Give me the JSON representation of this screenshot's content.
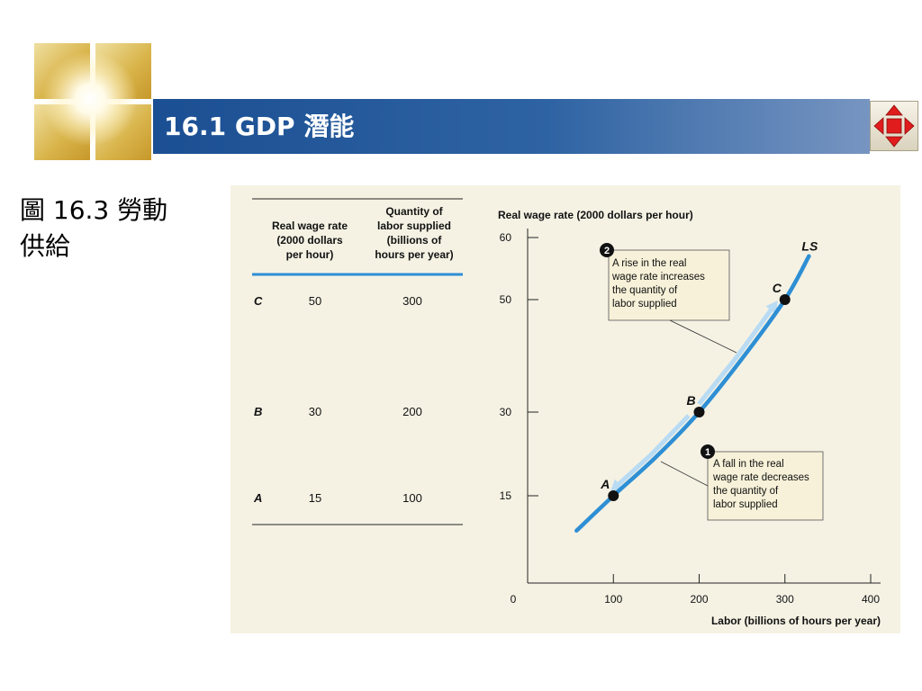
{
  "header": {
    "title": "16.1 GDP 潛能",
    "logo_icon": "golden-squares-logo",
    "nav_icon": "four-arrow-navigation-icon"
  },
  "caption": {
    "line1": "圖 16.3 勞動",
    "line2": "供給"
  },
  "table": {
    "headers": [
      {
        "lines": [
          "Real wage rate",
          "(2000 dollars",
          "per hour)"
        ]
      },
      {
        "lines": [
          "Quantity of",
          "labor supplied",
          "(billions of",
          "hours per year)"
        ]
      }
    ],
    "rows": [
      {
        "key": "C",
        "wage": "50",
        "quantity": "300"
      },
      {
        "key": "B",
        "wage": "30",
        "quantity": "200"
      },
      {
        "key": "A",
        "wage": "15",
        "quantity": "100"
      }
    ]
  },
  "chart_data": {
    "type": "line",
    "ylabel": "Real wage rate (2000 dollars per hour)",
    "xlabel": "Labor (billions of hours per year)",
    "xlim": [
      0,
      400
    ],
    "x_ticks": [
      "0",
      "100",
      "200",
      "300",
      "400"
    ],
    "y_ticks": [
      {
        "label": "15",
        "value": 15
      },
      {
        "label": "30",
        "value": 30
      },
      {
        "label": "50",
        "value": 50
      },
      {
        "label": "60",
        "value": 60
      }
    ],
    "curve_label": "LS",
    "curve_color": "#2e8fd4",
    "arrow_color": "#b9dbf3",
    "series": [
      {
        "x": [
          57,
          100,
          150,
          200,
          250,
          300,
          328
        ],
        "y": [
          9,
          15,
          22,
          30,
          39.5,
          50,
          57
        ]
      }
    ],
    "points": [
      {
        "label": "A",
        "x": 100,
        "y": 15
      },
      {
        "label": "B",
        "x": 200,
        "y": 30
      },
      {
        "label": "C",
        "x": 300,
        "y": 50
      }
    ],
    "annotations": [
      {
        "number": "2",
        "lines": [
          "A rise in the real",
          "wage rate increases",
          "the quantity of",
          "labor supplied"
        ]
      },
      {
        "number": "1",
        "lines": [
          "A fall in the real",
          "wage rate decreases",
          "the quantity of",
          "labor supplied"
        ]
      }
    ]
  }
}
